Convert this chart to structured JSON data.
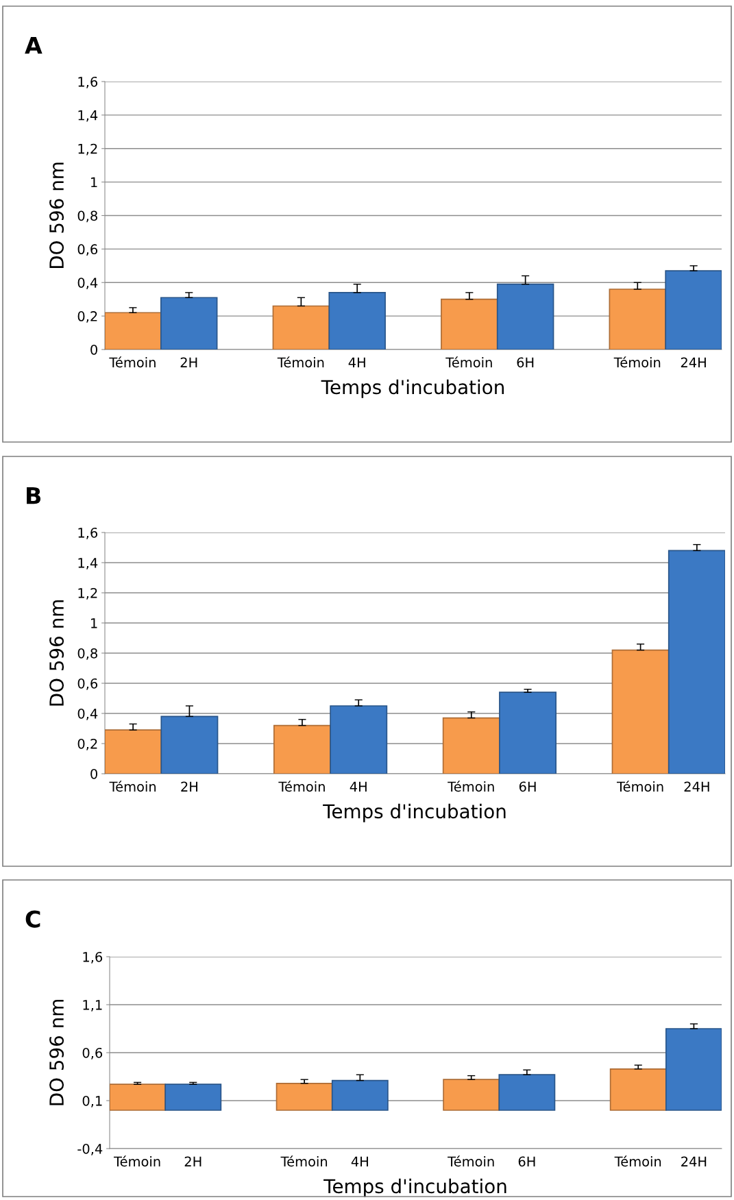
{
  "chart_data": [
    {
      "type": "bar",
      "title": "A",
      "xlabel": "Temps d'incubation",
      "ylabel": "DO 596 nm",
      "categories": [
        "Témoin",
        "2H",
        null,
        "Témoin",
        "4H",
        null,
        "Témoin",
        "6H",
        null,
        "Témoin",
        "24H"
      ],
      "values": [
        0.22,
        0.31,
        null,
        0.26,
        0.34,
        null,
        0.3,
        0.39,
        null,
        0.36,
        0.47
      ],
      "errors": [
        [
          0.22,
          0.25
        ],
        [
          0.31,
          0.34
        ],
        null,
        [
          0.26,
          0.31
        ],
        [
          0.34,
          0.39
        ],
        null,
        [
          0.3,
          0.34
        ],
        [
          0.39,
          0.44
        ],
        null,
        [
          0.36,
          0.4
        ],
        [
          0.47,
          0.5
        ]
      ],
      "colors": [
        "#f79b4c",
        "#3b79c4",
        null,
        "#f79b4c",
        "#3b79c4",
        null,
        "#f79b4c",
        "#3b79c4",
        null,
        "#f79b4c",
        "#3b79c4"
      ],
      "ylim": [
        0,
        1.6
      ],
      "yticks": [
        {
          "value": 0,
          "label": "0"
        },
        {
          "value": 0.2,
          "label": "0,2"
        },
        {
          "value": 0.4,
          "label": "0,4"
        },
        {
          "value": 0.6,
          "label": "0,6"
        },
        {
          "value": 0.8,
          "label": "0,8"
        },
        {
          "value": 1,
          "label": "1"
        },
        {
          "value": 1.2,
          "label": "1,2"
        },
        {
          "value": 1.4,
          "label": "1,4"
        },
        {
          "value": 1.6,
          "label": "1,6"
        }
      ],
      "grid": "y",
      "legend": false
    },
    {
      "type": "bar",
      "title": "B",
      "xlabel": "Temps d'incubation",
      "ylabel": "DO 596 nm",
      "categories": [
        "Témoin",
        "2H",
        null,
        "Témoin",
        "4H",
        null,
        "Témoin",
        "6H",
        null,
        "Témoin",
        "24H"
      ],
      "values": [
        0.29,
        0.38,
        null,
        0.32,
        0.45,
        null,
        0.37,
        0.54,
        null,
        0.82,
        1.48
      ],
      "errors": [
        [
          0.29,
          0.33
        ],
        [
          0.38,
          0.45
        ],
        null,
        [
          0.32,
          0.36
        ],
        [
          0.45,
          0.49
        ],
        null,
        [
          0.37,
          0.41
        ],
        [
          0.54,
          0.56
        ],
        null,
        [
          0.82,
          0.86
        ],
        [
          1.48,
          1.52
        ]
      ],
      "colors": [
        "#f79b4c",
        "#3b79c4",
        null,
        "#f79b4c",
        "#3b79c4",
        null,
        "#f79b4c",
        "#3b79c4",
        null,
        "#f79b4c",
        "#3b79c4"
      ],
      "ylim": [
        0,
        1.6
      ],
      "yticks": [
        {
          "value": 0,
          "label": "0"
        },
        {
          "value": 0.2,
          "label": "0,2"
        },
        {
          "value": 0.4,
          "label": "0,4"
        },
        {
          "value": 0.6,
          "label": "0,6"
        },
        {
          "value": 0.8,
          "label": "0,8"
        },
        {
          "value": 1,
          "label": "1"
        },
        {
          "value": 1.2,
          "label": "1,2"
        },
        {
          "value": 1.4,
          "label": "1,4"
        },
        {
          "value": 1.6,
          "label": "1,6"
        }
      ],
      "grid": "y",
      "legend": false
    },
    {
      "type": "bar",
      "title": "C",
      "xlabel": "Temps d'incubation",
      "ylabel": "DO 596 nm",
      "categories": [
        "Témoin",
        "2H",
        null,
        "Témoin",
        "4H",
        null,
        "Témoin",
        "6H",
        null,
        "Témoin",
        "24H"
      ],
      "values": [
        0.27,
        0.27,
        null,
        0.28,
        0.31,
        null,
        0.32,
        0.37,
        null,
        0.43,
        0.85
      ],
      "errors": [
        [
          0.27,
          0.29
        ],
        [
          0.27,
          0.29
        ],
        null,
        [
          0.28,
          0.32
        ],
        [
          0.31,
          0.37
        ],
        null,
        [
          0.32,
          0.36
        ],
        [
          0.37,
          0.42
        ],
        null,
        [
          0.43,
          0.47
        ],
        [
          0.85,
          0.9
        ]
      ],
      "colors": [
        "#f79b4c",
        "#3b79c4",
        null,
        "#f79b4c",
        "#3b79c4",
        null,
        "#f79b4c",
        "#3b79c4",
        null,
        "#f79b4c",
        "#3b79c4"
      ],
      "ylim": [
        -0.4,
        1.6
      ],
      "yticks": [
        {
          "value": -0.4,
          "label": "-0,4"
        },
        {
          "value": 0.1,
          "label": "0,1"
        },
        {
          "value": 0.6,
          "label": "0,6"
        },
        {
          "value": 1.1,
          "label": "1,1"
        },
        {
          "value": 1.6,
          "label": "1,6"
        }
      ],
      "grid": "y",
      "legend": false
    }
  ]
}
